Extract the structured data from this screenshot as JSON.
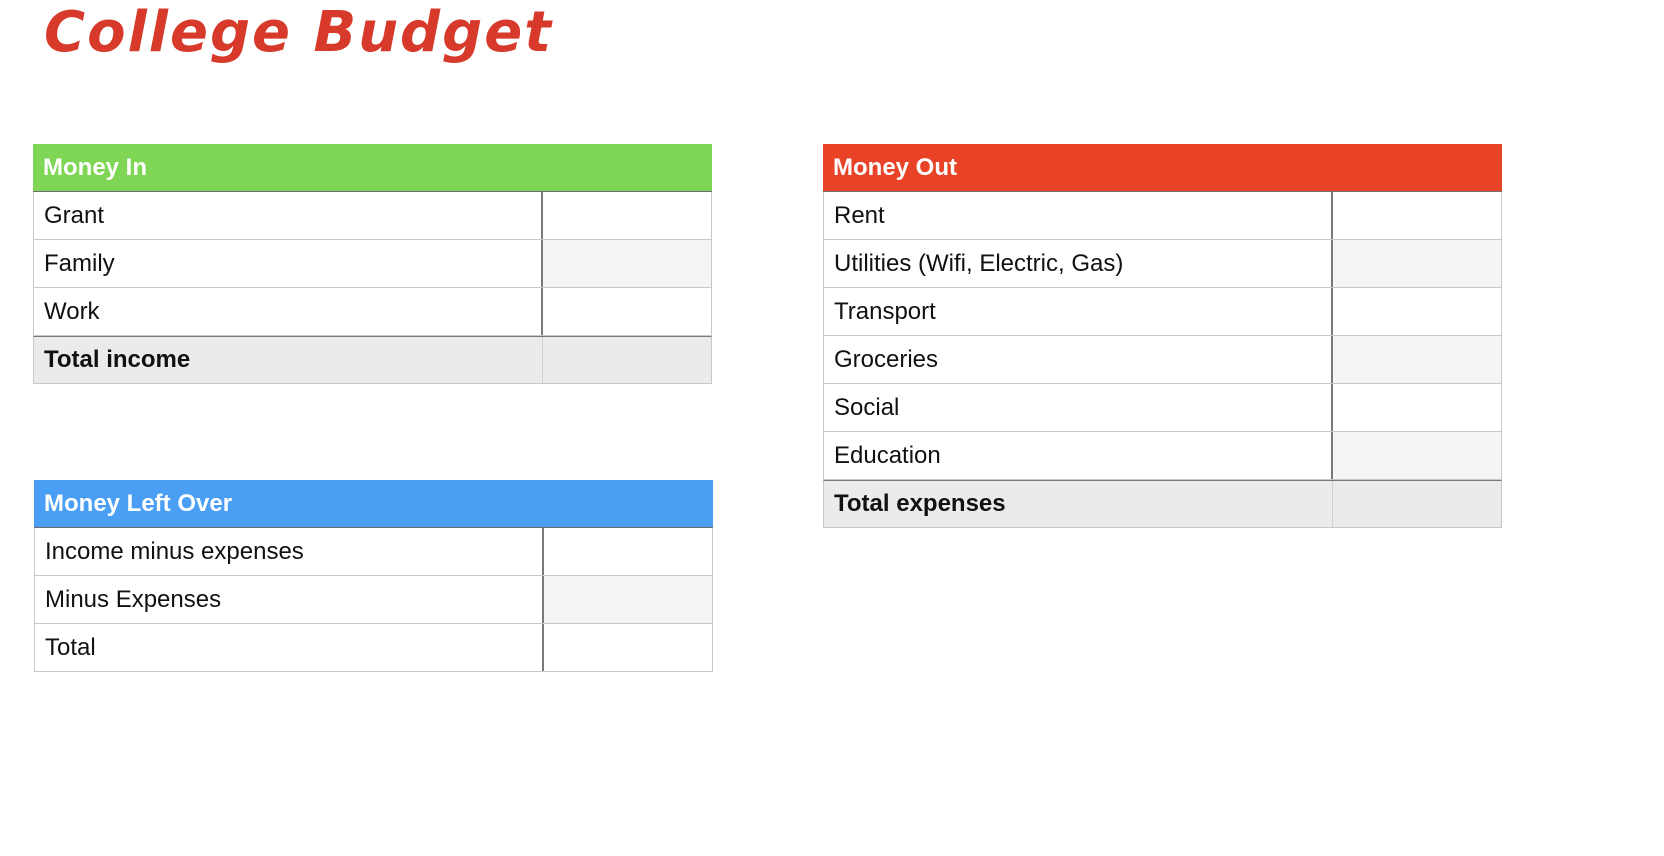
{
  "page": {
    "title": "College Budget"
  },
  "colors": {
    "title": "#d7392a",
    "money_in_header": "#7fd654",
    "money_out_header": "#e84327",
    "money_left_header": "#4a9ff5"
  },
  "money_in": {
    "header": "Money In",
    "rows": [
      {
        "label": "Grant",
        "value": ""
      },
      {
        "label": "Family",
        "value": ""
      },
      {
        "label": "Work",
        "value": ""
      }
    ],
    "total_label": "Total income",
    "total_value": ""
  },
  "money_out": {
    "header": "Money Out",
    "rows": [
      {
        "label": "Rent",
        "value": ""
      },
      {
        "label": "Utilities (Wifi, Electric, Gas)",
        "value": ""
      },
      {
        "label": "Transport",
        "value": ""
      },
      {
        "label": "Groceries",
        "value": ""
      },
      {
        "label": "Social",
        "value": ""
      },
      {
        "label": "Education",
        "value": ""
      }
    ],
    "total_label": "Total expenses",
    "total_value": ""
  },
  "money_left": {
    "header": "Money Left Over",
    "rows": [
      {
        "label": "Income minus expenses",
        "value": ""
      },
      {
        "label": "Minus Expenses",
        "value": ""
      },
      {
        "label": "Total",
        "value": ""
      }
    ]
  }
}
